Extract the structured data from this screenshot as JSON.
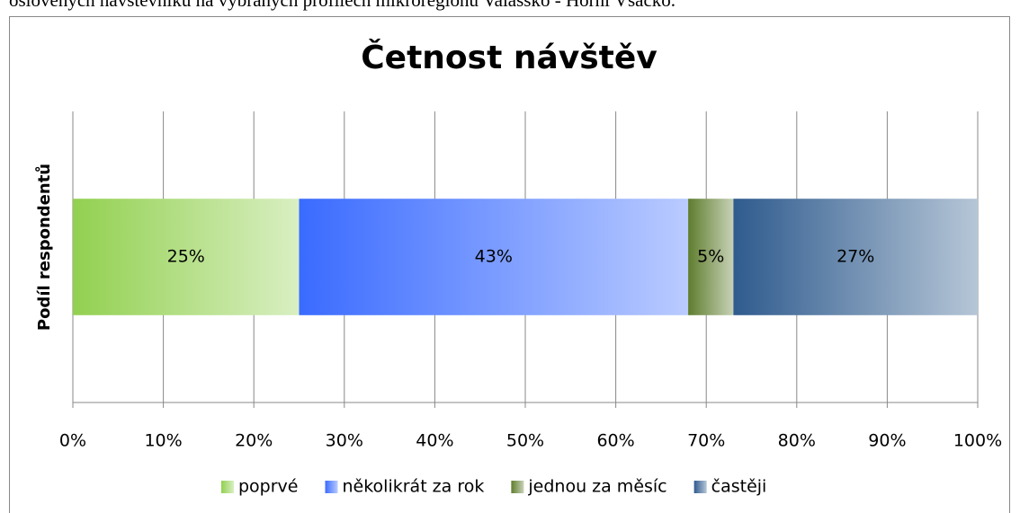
{
  "caption": "oslovených návštěvníků na vybraných profilech mikroregionu Valašsko - Horní Vsacko.",
  "chart_data": {
    "type": "stacked_barh",
    "title": "Četnost návštěv",
    "y_label": "Podíl respondentů",
    "categories": [
      null
    ],
    "series": [
      {
        "name": "poprvé",
        "color": "#92d050",
        "values": [
          25
        ],
        "value_labels": [
          "25%"
        ]
      },
      {
        "name": "několikrát za rok",
        "color": "#3a6bff",
        "values": [
          43
        ],
        "value_labels": [
          "43%"
        ]
      },
      {
        "name": "jednou za měsíc",
        "color": "#5f7d2e",
        "values": [
          5
        ],
        "value_labels": [
          "5%"
        ]
      },
      {
        "name": "častěji",
        "color": "#2f5b8e",
        "values": [
          27
        ],
        "value_labels": [
          "27%"
        ]
      }
    ],
    "xlim": [
      0,
      100
    ],
    "xticks": [
      {
        "value": 0,
        "label": "0%"
      },
      {
        "value": 10,
        "label": "10%"
      },
      {
        "value": 20,
        "label": "20%"
      },
      {
        "value": 30,
        "label": "30%"
      },
      {
        "value": 40,
        "label": "40%"
      },
      {
        "value": 50,
        "label": "50%"
      },
      {
        "value": 60,
        "label": "60%"
      },
      {
        "value": 70,
        "label": "70%"
      },
      {
        "value": 80,
        "label": "80%"
      },
      {
        "value": 90,
        "label": "90%"
      },
      {
        "value": 100,
        "label": "100%"
      }
    ],
    "grid": true,
    "legend": "bottom"
  }
}
